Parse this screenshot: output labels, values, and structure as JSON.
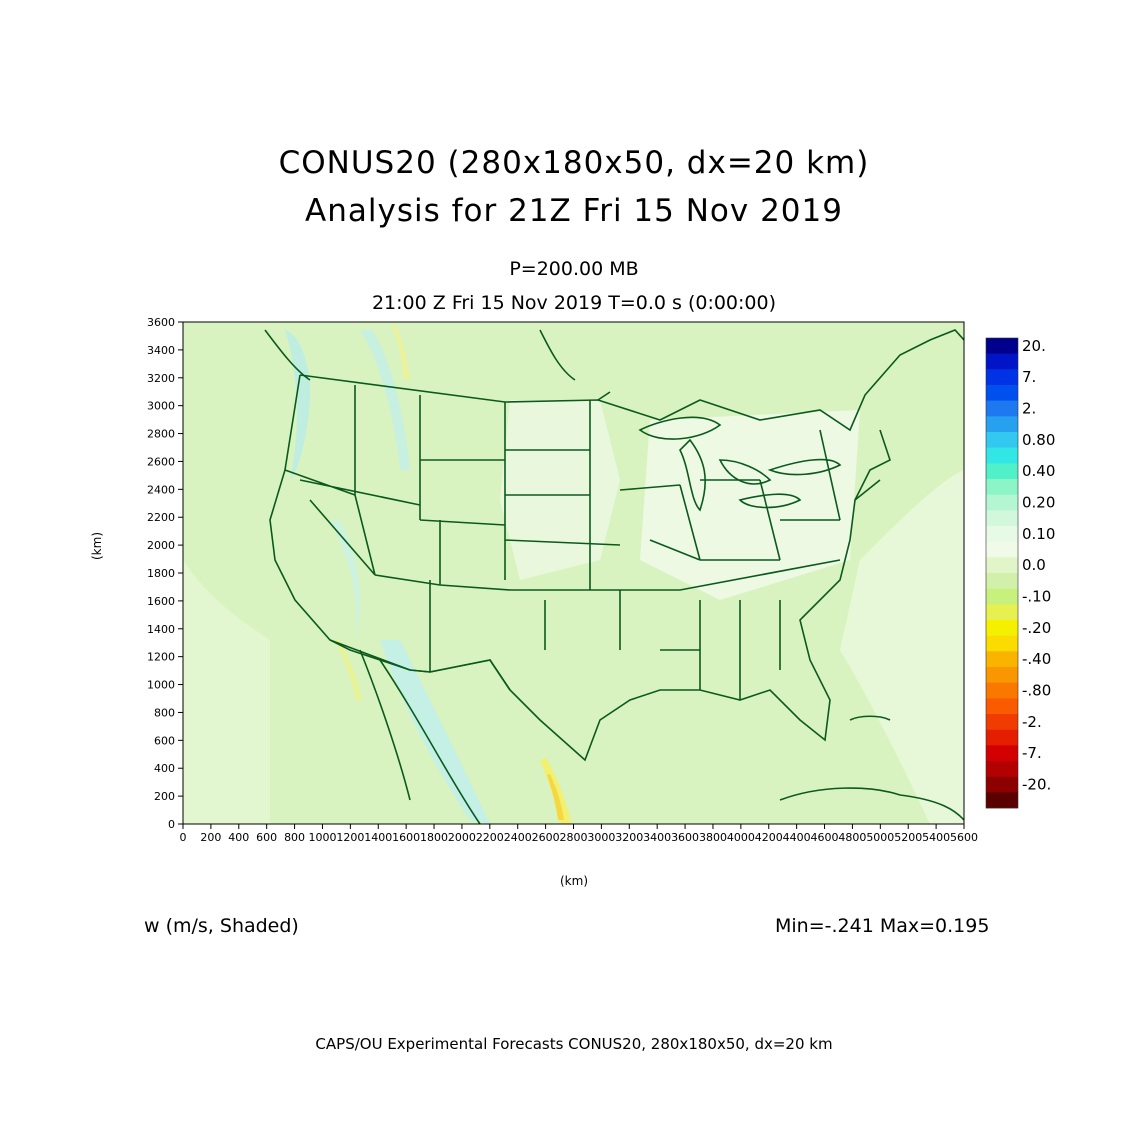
{
  "title_line1": "CONUS20 (280x180x50, dx=20 km)",
  "title_line2": "Analysis for 21Z Fri 15 Nov 2019",
  "level": "P=200.00 MB",
  "valid_time": "21:00 Z Fri 15 Nov 2019    T=0.0 s (0:00:00)",
  "x_axis": {
    "label": "(km)",
    "min": 0,
    "max": 5600,
    "step": 200
  },
  "y_axis": {
    "label": "(km)",
    "min": 0,
    "max": 3600,
    "step": 200
  },
  "variable_label": "w (m/s, Shaded)",
  "min_max": "Min=-.241 Max=0.195",
  "footer": "CAPS/OU Experimental Forecasts  CONUS20, 280x180x50, dx=20 km",
  "colorbar": {
    "labels": [
      "20.",
      "7.",
      "2.",
      "0.80",
      "0.40",
      "0.20",
      "0.10",
      "0.0",
      "-.10",
      "-.20",
      "-.40",
      "-.80",
      "-2.",
      "-7.",
      "-20."
    ],
    "colors_top_to_bottom": [
      "#00008c",
      "#0014c8",
      "#0032e6",
      "#0050f0",
      "#1e78f0",
      "#28a0f0",
      "#32c8f0",
      "#32e6e6",
      "#50f0c8",
      "#8cf5c8",
      "#b4f5d2",
      "#d2f8dc",
      "#e6fae6",
      "#f0fae6",
      "#e1f5c8",
      "#d2f0aa",
      "#c8f07d",
      "#e6f050",
      "#f5f000",
      "#fadc00",
      "#fab400",
      "#fa9600",
      "#fa7800",
      "#fa5a00",
      "#f03c00",
      "#e61e00",
      "#d20000",
      "#b40000",
      "#8c0000",
      "#5a0000"
    ]
  },
  "colors": {
    "map_fill": "#d9f3c0",
    "boundary": "#0a5a1e"
  }
}
